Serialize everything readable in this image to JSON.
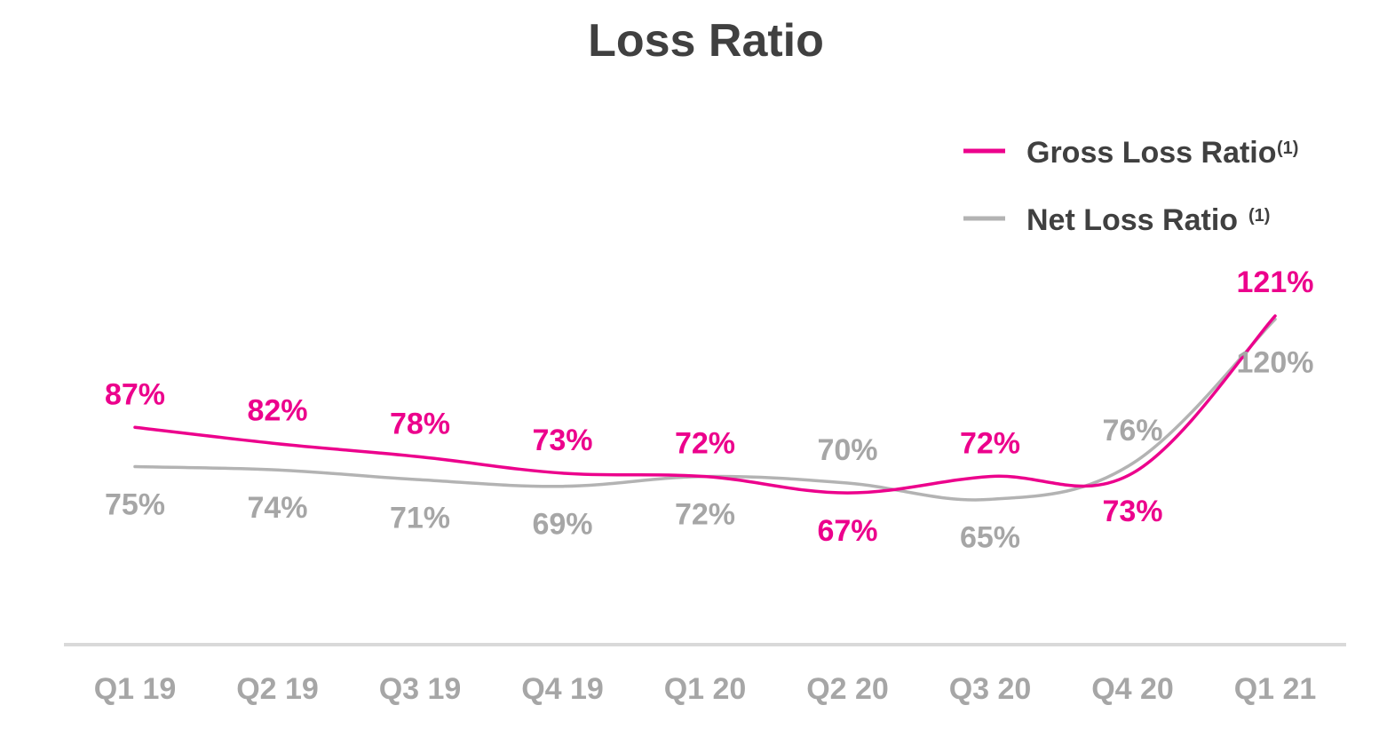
{
  "chart_data": {
    "type": "line",
    "title": "Loss Ratio",
    "xlabel": "",
    "ylabel": "",
    "categories": [
      "Q1 19",
      "Q2 19",
      "Q3 19",
      "Q4 19",
      "Q1 20",
      "Q2 20",
      "Q3 20",
      "Q4 20",
      "Q1 21"
    ],
    "series": [
      {
        "name": "Gross Loss Ratio",
        "superscript": "(1)",
        "color": "#ec008c",
        "values": [
          87,
          82,
          78,
          73,
          72,
          67,
          72,
          73,
          121
        ],
        "labels": [
          "87%",
          "82%",
          "78%",
          "73%",
          "72%",
          "67%",
          "72%",
          "73%",
          "121%"
        ]
      },
      {
        "name": "Net Loss Ratio",
        "superscript": "(1)",
        "color": "#b3b3b3",
        "values": [
          75,
          74,
          71,
          69,
          72,
          70,
          65,
          76,
          120
        ],
        "labels": [
          "75%",
          "74%",
          "71%",
          "69%",
          "72%",
          "70%",
          "65%",
          "76%",
          "120%"
        ]
      }
    ],
    "ylim": [
      50,
      125
    ],
    "grid": false,
    "legend": "top-right",
    "axis_color": "#d9d9d9"
  }
}
